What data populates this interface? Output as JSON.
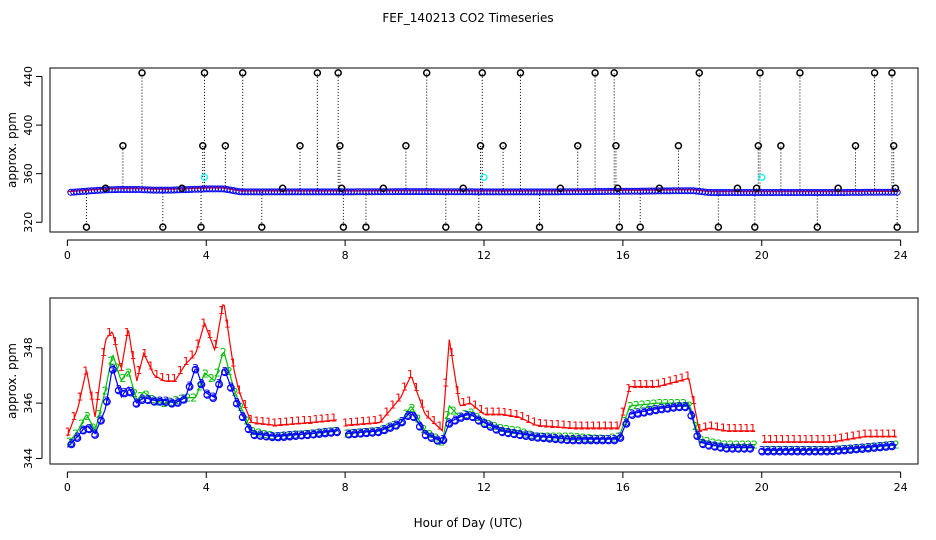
{
  "title": "FEF_140213  CO2 Timeseries",
  "xlabel": "Hour of Day (UTC)",
  "colors": {
    "ch1": "#ff0000",
    "ch2": "#00c000",
    "ch3": "#0000ff",
    "ring": "#0000ff",
    "flag": "#00ffff",
    "spike": "#000000"
  },
  "chart_data": [
    {
      "type": "scatter",
      "name": "top-panel",
      "title": "FEF_140213  CO2 Timeseries",
      "xlabel": "",
      "ylabel": "approx. ppm",
      "xlim": [
        -0.5,
        24.5
      ],
      "ylim": [
        312,
        447
      ],
      "xticks": [
        0,
        4,
        8,
        12,
        16,
        20,
        24
      ],
      "yticks": [
        320,
        360,
        400,
        440
      ],
      "baseline_x": [
        0.0,
        0.5,
        1.0,
        1.5,
        2.0,
        2.5,
        3.0,
        3.5,
        4.0,
        4.5,
        5.0,
        6.0,
        8.0,
        10.0,
        12.0,
        14.0,
        16.0,
        17.0,
        18.0,
        18.5,
        20.0,
        22.0,
        24.0
      ],
      "baseline_y": [
        344.5,
        345.5,
        346.5,
        347,
        347,
        346.5,
        346.5,
        347,
        347.5,
        347.5,
        345,
        345,
        345,
        345.3,
        345,
        345,
        345.5,
        345.8,
        346,
        344.5,
        344.5,
        344.5,
        344.8
      ],
      "spikes": [
        {
          "x": 0.55,
          "y": 316
        },
        {
          "x": 1.1,
          "y": 348
        },
        {
          "x": 1.6,
          "y": 383
        },
        {
          "x": 2.15,
          "y": 443
        },
        {
          "x": 2.75,
          "y": 316
        },
        {
          "x": 3.3,
          "y": 348
        },
        {
          "x": 3.85,
          "y": 316
        },
        {
          "x": 3.9,
          "y": 383
        },
        {
          "x": 3.95,
          "y": 443
        },
        {
          "x": 4.55,
          "y": 383
        },
        {
          "x": 5.05,
          "y": 443
        },
        {
          "x": 5.6,
          "y": 316
        },
        {
          "x": 6.2,
          "y": 348
        },
        {
          "x": 6.7,
          "y": 383
        },
        {
          "x": 7.2,
          "y": 443
        },
        {
          "x": 7.8,
          "y": 443
        },
        {
          "x": 7.85,
          "y": 383
        },
        {
          "x": 7.9,
          "y": 348
        },
        {
          "x": 7.95,
          "y": 316
        },
        {
          "x": 8.6,
          "y": 316
        },
        {
          "x": 9.1,
          "y": 348
        },
        {
          "x": 9.75,
          "y": 383
        },
        {
          "x": 10.35,
          "y": 443
        },
        {
          "x": 10.9,
          "y": 316
        },
        {
          "x": 11.4,
          "y": 348
        },
        {
          "x": 11.85,
          "y": 316
        },
        {
          "x": 11.9,
          "y": 383
        },
        {
          "x": 11.95,
          "y": 443
        },
        {
          "x": 12.55,
          "y": 383
        },
        {
          "x": 13.05,
          "y": 443
        },
        {
          "x": 13.6,
          "y": 316
        },
        {
          "x": 14.2,
          "y": 348
        },
        {
          "x": 14.7,
          "y": 383
        },
        {
          "x": 15.2,
          "y": 443
        },
        {
          "x": 15.75,
          "y": 443
        },
        {
          "x": 15.8,
          "y": 383
        },
        {
          "x": 15.85,
          "y": 348
        },
        {
          "x": 15.9,
          "y": 316
        },
        {
          "x": 16.5,
          "y": 316
        },
        {
          "x": 17.05,
          "y": 348
        },
        {
          "x": 17.6,
          "y": 383
        },
        {
          "x": 18.2,
          "y": 443
        },
        {
          "x": 18.75,
          "y": 316
        },
        {
          "x": 19.3,
          "y": 348
        },
        {
          "x": 19.8,
          "y": 316
        },
        {
          "x": 19.85,
          "y": 348
        },
        {
          "x": 19.9,
          "y": 383
        },
        {
          "x": 19.95,
          "y": 443
        },
        {
          "x": 20.55,
          "y": 383
        },
        {
          "x": 21.1,
          "y": 443
        },
        {
          "x": 21.6,
          "y": 316
        },
        {
          "x": 22.2,
          "y": 348
        },
        {
          "x": 22.7,
          "y": 383
        },
        {
          "x": 23.25,
          "y": 443
        },
        {
          "x": 23.75,
          "y": 443
        },
        {
          "x": 23.8,
          "y": 383
        },
        {
          "x": 23.85,
          "y": 348
        },
        {
          "x": 23.9,
          "y": 316
        }
      ],
      "flagged": [
        {
          "x": 3.95,
          "y": 357
        },
        {
          "x": 12.0,
          "y": 357
        },
        {
          "x": 20.0,
          "y": 357
        }
      ]
    },
    {
      "type": "line",
      "name": "bottom-panel",
      "xlabel": "Hour of Day (UTC)",
      "ylabel": "approx. ppm",
      "xlim": [
        -0.5,
        24.5
      ],
      "ylim": [
        343.8,
        349.8
      ],
      "xticks": [
        0,
        4,
        8,
        12,
        16,
        20,
        24
      ],
      "yticks": [
        344,
        346,
        348
      ],
      "gaps": [
        [
          7.8,
          8.0
        ],
        [
          19.8,
          20.0
        ]
      ],
      "series": [
        {
          "name": "1",
          "symbol": "1",
          "color": "#ff0000",
          "x": [
            0.0,
            0.3,
            0.55,
            0.8,
            1.1,
            1.3,
            1.55,
            1.75,
            2.0,
            2.2,
            2.5,
            2.8,
            3.1,
            3.4,
            3.7,
            3.95,
            4.25,
            4.5,
            4.8,
            4.95,
            5.3,
            6.0,
            7.0,
            7.8,
            8.0,
            9.0,
            9.6,
            9.9,
            10.3,
            10.8,
            11.0,
            11.3,
            11.6,
            12.0,
            12.5,
            13.0,
            13.5,
            14.5,
            15.5,
            15.9,
            16.2,
            17.0,
            17.6,
            17.9,
            18.2,
            18.5,
            19.0,
            19.8,
            20.0,
            21.0,
            22.0,
            23.0,
            23.9
          ],
          "y": [
            344.8,
            345.8,
            347.2,
            345.5,
            348.3,
            348.6,
            347.2,
            348.7,
            346.8,
            347.8,
            347.0,
            346.8,
            346.8,
            347.4,
            347.8,
            348.9,
            347.9,
            349.7,
            347.2,
            346.4,
            345.3,
            345.2,
            345.3,
            345.4,
            345.2,
            345.3,
            346.2,
            347.0,
            345.6,
            345.0,
            348.3,
            345.9,
            346.0,
            345.6,
            345.6,
            345.5,
            345.2,
            345.1,
            345.1,
            345.1,
            346.6,
            346.6,
            346.8,
            346.9,
            345.0,
            345.1,
            345.0,
            345.0,
            344.6,
            344.6,
            344.6,
            344.8,
            344.8
          ]
        },
        {
          "name": "2",
          "symbol": "2",
          "color": "#00c000",
          "x": [
            0.0,
            0.3,
            0.55,
            0.8,
            1.1,
            1.3,
            1.55,
            1.75,
            2.0,
            2.2,
            2.5,
            2.8,
            3.1,
            3.4,
            3.7,
            3.95,
            4.25,
            4.5,
            4.8,
            4.95,
            5.3,
            6.0,
            7.0,
            7.8,
            8.0,
            9.0,
            9.6,
            9.9,
            10.3,
            10.8,
            11.0,
            11.3,
            11.6,
            12.0,
            12.5,
            13.0,
            13.5,
            14.5,
            15.5,
            15.9,
            16.2,
            17.0,
            17.6,
            17.9,
            18.2,
            18.5,
            19.0,
            19.8,
            20.0,
            21.0,
            22.0,
            23.0,
            23.9
          ],
          "y": [
            344.5,
            345.0,
            345.6,
            345.0,
            346.5,
            347.8,
            346.8,
            347.2,
            346.1,
            346.4,
            346.1,
            346.0,
            346.1,
            346.2,
            346.2,
            347.1,
            346.8,
            347.9,
            346.5,
            346.0,
            345.0,
            344.8,
            344.9,
            345.0,
            344.9,
            345.0,
            345.3,
            345.9,
            345.0,
            344.6,
            345.9,
            345.5,
            345.7,
            345.3,
            345.1,
            345.0,
            344.8,
            344.8,
            344.7,
            344.8,
            345.9,
            346.0,
            346.0,
            346.0,
            344.7,
            344.6,
            344.5,
            344.5,
            344.3,
            344.3,
            344.3,
            344.4,
            344.5
          ]
        },
        {
          "name": "3",
          "symbol": "3",
          "color": "#0000ff",
          "x": [
            0.0,
            0.3,
            0.55,
            0.8,
            1.1,
            1.3,
            1.55,
            1.75,
            2.0,
            2.2,
            2.5,
            2.8,
            3.1,
            3.4,
            3.7,
            3.95,
            4.25,
            4.5,
            4.8,
            4.95,
            5.3,
            6.0,
            7.0,
            7.8,
            8.0,
            9.0,
            9.6,
            9.9,
            10.3,
            10.8,
            11.0,
            11.3,
            11.6,
            12.0,
            12.5,
            13.0,
            13.5,
            14.5,
            15.5,
            15.9,
            16.2,
            17.0,
            17.6,
            17.9,
            18.2,
            18.5,
            19.0,
            19.8,
            20.0,
            21.0,
            22.0,
            23.0,
            23.9
          ],
          "y": [
            344.4,
            344.8,
            345.2,
            344.9,
            345.8,
            347.3,
            346.2,
            346.6,
            346.0,
            346.2,
            346.1,
            346.1,
            346.0,
            346.2,
            347.3,
            346.4,
            346.2,
            347.3,
            346.3,
            345.8,
            344.9,
            344.8,
            344.9,
            345.0,
            344.9,
            345.0,
            345.3,
            345.7,
            344.9,
            344.6,
            345.3,
            345.5,
            345.6,
            345.3,
            345.0,
            344.9,
            344.8,
            344.7,
            344.7,
            344.7,
            345.6,
            345.8,
            345.9,
            345.9,
            344.6,
            344.5,
            344.4,
            344.4,
            344.3,
            344.3,
            344.3,
            344.4,
            344.5
          ]
        }
      ]
    }
  ]
}
